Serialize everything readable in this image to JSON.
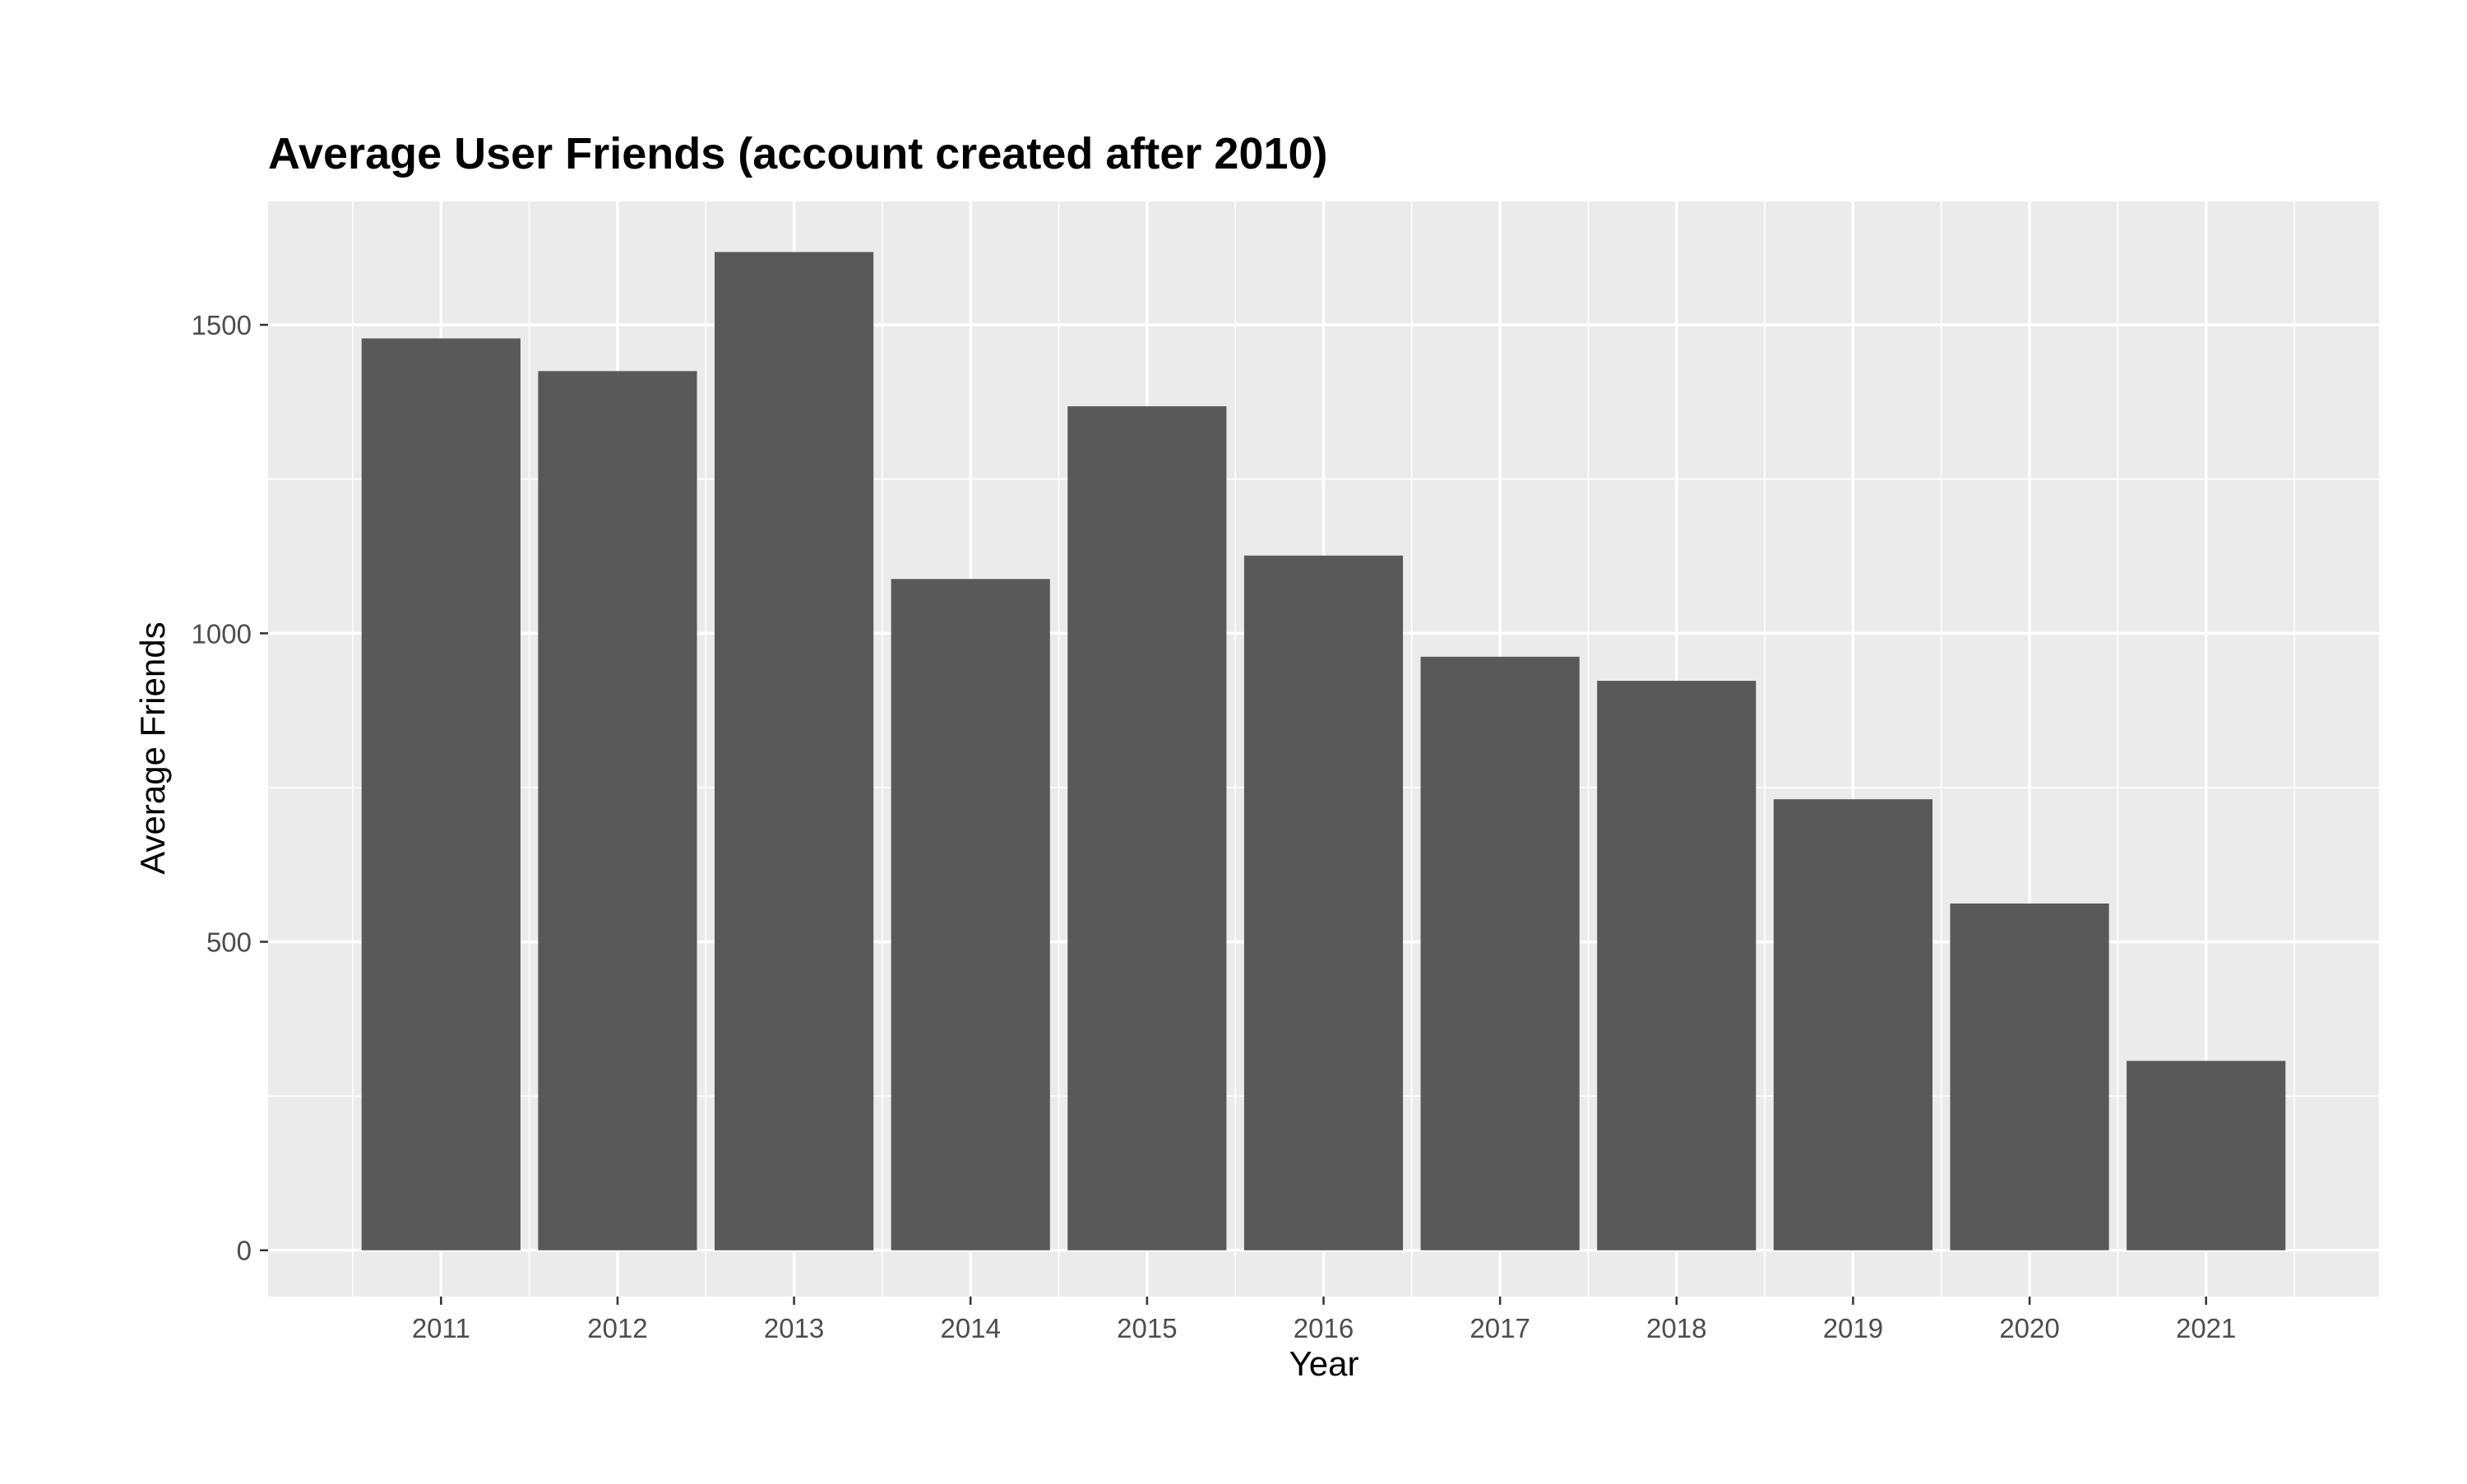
{
  "chart_data": {
    "type": "bar",
    "title": "Average User Friends (account created after 2010)",
    "xlabel": "Year",
    "ylabel": "Average Friends",
    "categories": [
      "2011",
      "2012",
      "2013",
      "2014",
      "2015",
      "2016",
      "2017",
      "2018",
      "2019",
      "2020",
      "2021"
    ],
    "values": [
      1478,
      1425,
      1618,
      1088,
      1368,
      1126,
      962,
      923,
      731,
      562,
      307
    ],
    "ylim": [
      -75,
      1700
    ],
    "yticks": [
      0,
      500,
      1000,
      1500
    ],
    "ytick_labels": [
      "0",
      "500",
      "1000",
      "1500"
    ],
    "grid": true,
    "legend": "none",
    "colors": {
      "bar": "#595959",
      "panel_background": "#ebebeb",
      "grid_line": "#ffffff",
      "tick_label": "#4d4d4d",
      "text": "#000000"
    }
  }
}
